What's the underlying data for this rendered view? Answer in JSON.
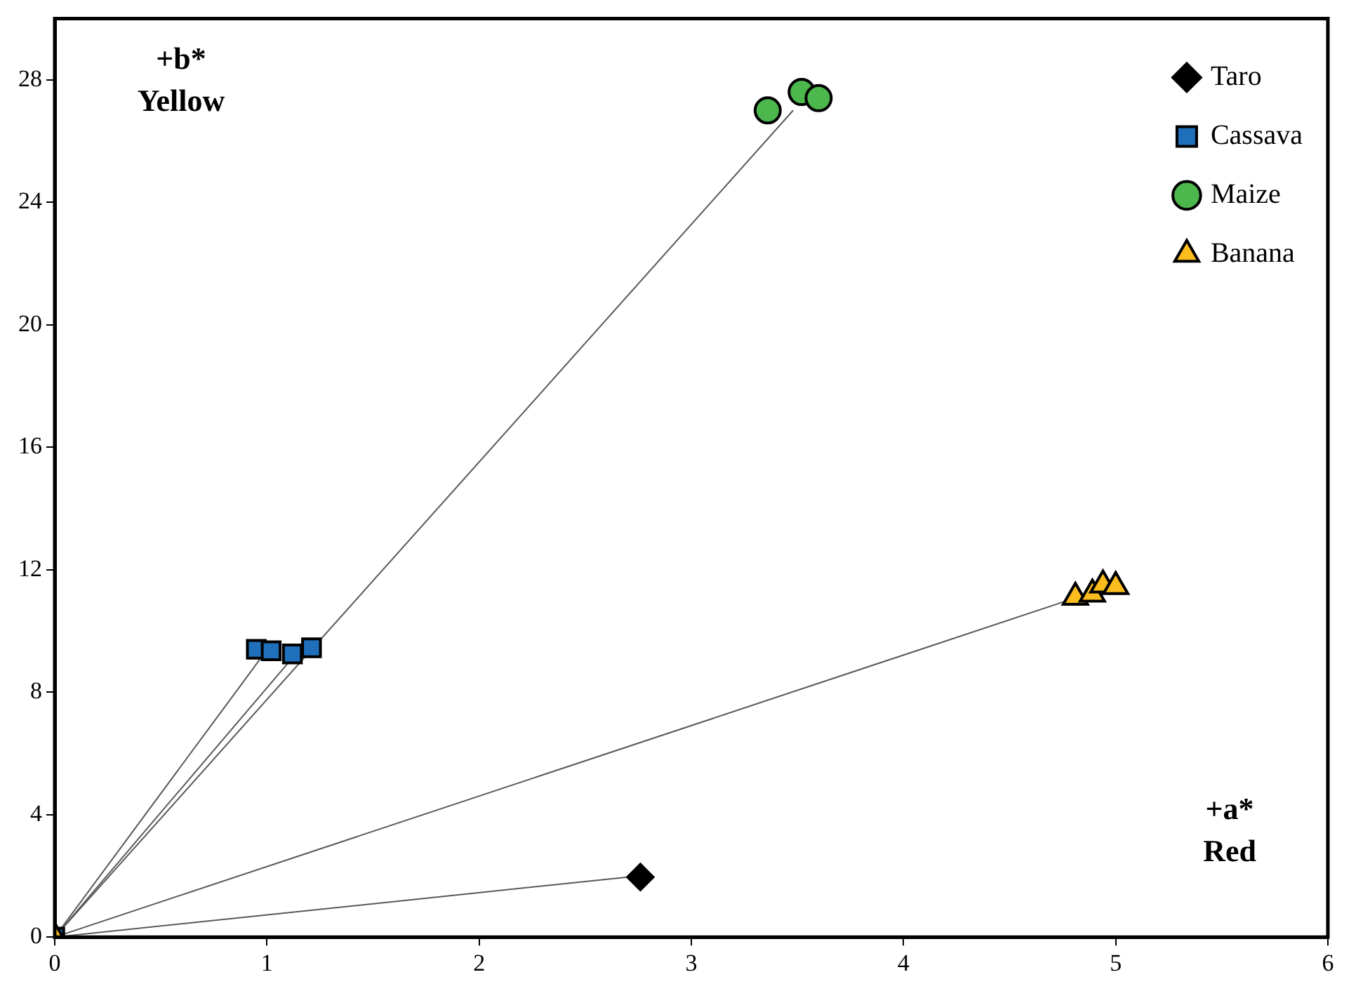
{
  "chart_data": {
    "type": "scatter",
    "xlim": [
      0,
      6
    ],
    "ylim": [
      0,
      30
    ],
    "xticks": [
      0,
      1,
      2,
      3,
      4,
      5,
      6
    ],
    "yticks": [
      0,
      4,
      8,
      12,
      16,
      20,
      24,
      28
    ],
    "grid": false,
    "legend": "top right",
    "annotations": [
      "+b*\nYellow",
      "+a*\nRed"
    ],
    "series": [
      {
        "type": "line",
        "color": "#595959",
        "marker": "none",
        "x": [
          0,
          2.7
        ],
        "values": [
          0,
          1.96
        ]
      },
      {
        "type": "line",
        "color": "#595959",
        "marker": "none",
        "x": [
          0,
          0.97
        ],
        "values": [
          0,
          9.1
        ]
      },
      {
        "type": "line",
        "color": "#595959",
        "marker": "none",
        "x": [
          0,
          1.13
        ],
        "values": [
          0,
          9.2
        ]
      },
      {
        "type": "line",
        "color": "#595959",
        "marker": "none",
        "x": [
          0,
          3.48
        ],
        "values": [
          0,
          27.0
        ]
      },
      {
        "type": "line",
        "color": "#595959",
        "marker": "none",
        "x": [
          0,
          4.82
        ],
        "values": [
          0,
          11.1
        ]
      },
      {
        "name": "Taro",
        "color": "#000000",
        "marker": "diamond",
        "x": [
          2.76
        ],
        "values": [
          1.96
        ]
      },
      {
        "name": "Cassava",
        "color": "#1f6fba",
        "marker": "square",
        "x": [
          0,
          0.95,
          1.02,
          1.12,
          1.21
        ],
        "values": [
          0,
          9.4,
          9.35,
          9.25,
          9.45
        ]
      },
      {
        "name": "Maize",
        "color": "#4cb74c",
        "marker": "circle",
        "x": [
          3.36,
          3.52,
          3.6
        ],
        "values": [
          27.0,
          27.6,
          27.4
        ]
      },
      {
        "name": "Banana",
        "color": "#fbbc1d",
        "marker": "triangle",
        "x": [
          0,
          4.81,
          4.89,
          4.94,
          5.0
        ],
        "values": [
          0,
          11.1,
          11.2,
          11.5,
          11.45
        ]
      }
    ]
  }
}
